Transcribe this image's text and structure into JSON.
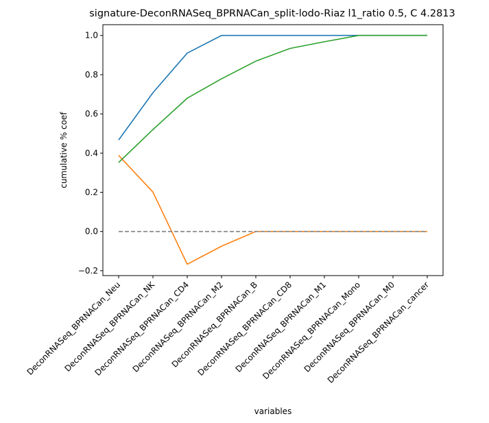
{
  "chart_data": {
    "type": "line",
    "title": "signature-DeconRNASeq_BPRNACan_split-lodo-Riaz l1_ratio 0.5, C 4.2813",
    "xlabel": "variables",
    "ylabel": "cumulative % coef",
    "categories": [
      "DeconRNASeq_BPRNACan_Neu",
      "DeconRNASeq_BPRNACan_NK",
      "DeconRNASeq_BPRNACan_CD4",
      "DeconRNASeq_BPRNACan_M2",
      "DeconRNASeq_BPRNACan_B",
      "DeconRNASeq_BPRNACan_CD8",
      "DeconRNASeq_BPRNACan_M1",
      "DeconRNASeq_BPRNACan_Mono",
      "DeconRNASeq_BPRNACan_M0",
      "DeconRNASeq_BPRNACan_cancer"
    ],
    "ylim": [
      -0.225,
      1.055
    ],
    "yticks": [
      -0.2,
      0.0,
      0.2,
      0.4,
      0.6,
      0.8,
      1.0
    ],
    "ytick_labels": [
      "−0.2",
      "0.0",
      "0.2",
      "0.4",
      "0.6",
      "0.8",
      "1.0"
    ],
    "grid": false,
    "series": [
      {
        "color": "#1f77b4",
        "dash": "solid",
        "values": [
          0.467,
          0.708,
          0.91,
          1.0,
          1.0,
          1.0,
          1.0,
          1.0,
          1.0,
          1.0
        ]
      },
      {
        "color": "#ff7f0e",
        "dash": "solid",
        "values": [
          0.388,
          0.201,
          -0.167,
          -0.075,
          0.0,
          0.0,
          0.0,
          0.0,
          0.0,
          0.0
        ]
      },
      {
        "color": "#2ca02c",
        "dash": "solid",
        "values": [
          0.352,
          0.52,
          0.68,
          0.779,
          0.869,
          0.934,
          0.968,
          1.0,
          1.0,
          1.0
        ]
      },
      {
        "color": "#7f7f7f",
        "dash": "dashed",
        "values": [
          0.0,
          0.0,
          0.0,
          0.0,
          0.0,
          0.0,
          0.0,
          0.0,
          0.0,
          0.0
        ]
      }
    ]
  }
}
